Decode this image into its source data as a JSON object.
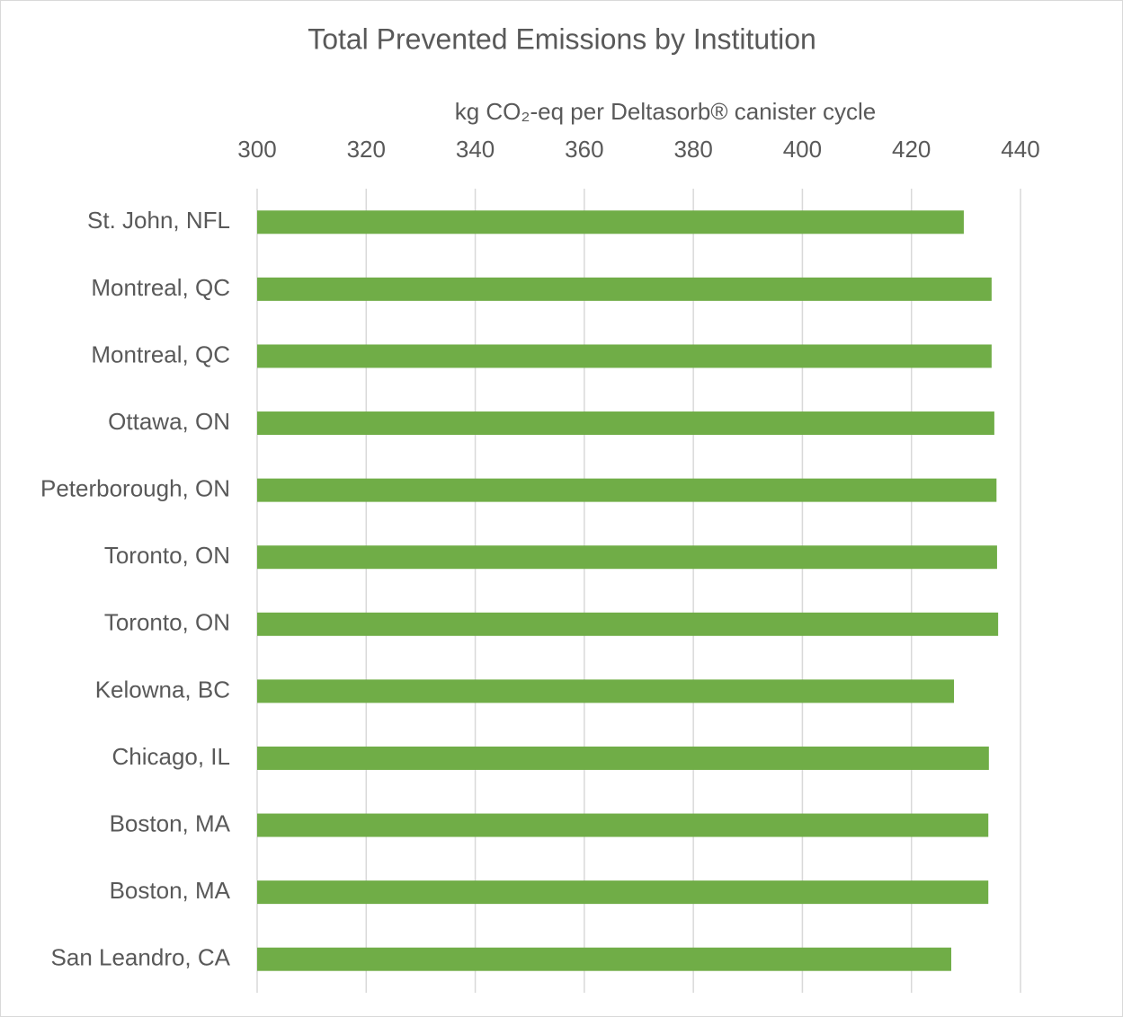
{
  "chart_data": {
    "type": "bar",
    "orientation": "horizontal",
    "title": "Total Prevented Emissions by Institution",
    "x_axis_label": "kg CO₂-eq per Deltasorb® canister cycle",
    "categories": [
      "St. John, NFL",
      "Montreal, QC",
      "Montreal, QC",
      "Ottawa, ON",
      "Peterborough, ON",
      "Toronto, ON",
      "Toronto, ON",
      "Kelowna, BC",
      "Chicago, IL",
      "Boston, MA",
      "Boston, MA",
      "San Leandro, CA"
    ],
    "values": [
      429.6,
      434.7,
      434.7,
      435.2,
      435.6,
      435.7,
      435.9,
      427.8,
      434.2,
      434.1,
      434.1,
      427.3
    ],
    "color": "#70ad47",
    "xlim": [
      300,
      440
    ],
    "xticks": [
      300,
      320,
      340,
      360,
      380,
      400,
      420,
      440
    ],
    "x_axis_position": "top",
    "grid": true
  }
}
